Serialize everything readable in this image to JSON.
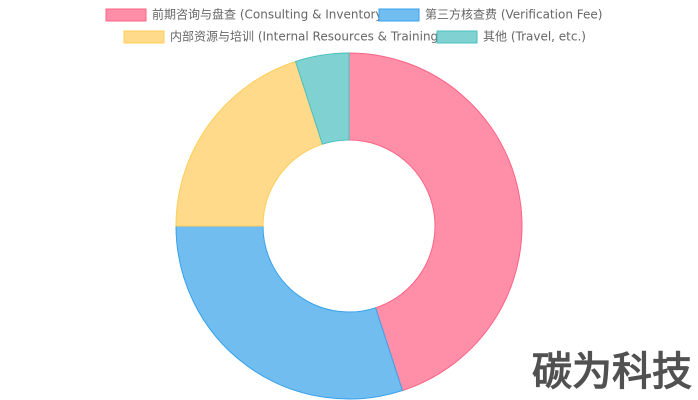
{
  "chart_data": {
    "type": "doughnut",
    "categories": [
      "前期咨询与盘查 (Consulting & Inventory)",
      "第三方核查费 (Verification Fee)",
      "内部资源与培训 (Internal Resources & Training)",
      "其他 (Travel, etc.)"
    ],
    "values": [
      45,
      30,
      20,
      5
    ],
    "colors": [
      "#ff8fa8",
      "#72bdf0",
      "#ffda8a",
      "#80d2d2"
    ],
    "border_colors": [
      "#ff6384",
      "#36a2eb",
      "#ffce56",
      "#4bc0c0"
    ],
    "legend": "top"
  },
  "watermark": "碳为科技"
}
